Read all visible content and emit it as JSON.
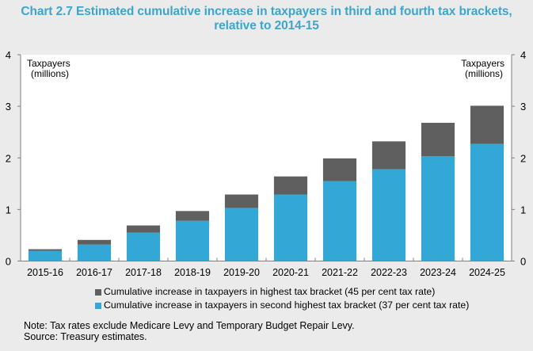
{
  "title_line1": "Chart 2.7 Estimated cumulative increase in taxpayers in third and fourth tax brackets,",
  "title_line2": "relative to 2014-15",
  "colors": {
    "background": "#ebebeb",
    "plot_background": "#ffffff",
    "title": "#3aa6cc",
    "highest_bracket": "#5f5f5f",
    "second_highest_bracket": "#33a8d6"
  },
  "chart_data": {
    "type": "bar",
    "stacked": true,
    "title": "Chart 2.7 Estimated cumulative increase in taxpayers in third and fourth tax brackets, relative to 2014-15",
    "xlabel": "",
    "ylabel": "Taxpayers (millions)",
    "ylabel_left": [
      "Taxpayers",
      "(millions)"
    ],
    "ylabel_right": [
      "Taxpayers",
      "(millions)"
    ],
    "ylim": [
      0,
      4
    ],
    "yticks": [
      0,
      1,
      2,
      3,
      4
    ],
    "grid": false,
    "legend_position": "bottom",
    "categories": [
      "2015-16",
      "2016-17",
      "2017-18",
      "2018-19",
      "2019-20",
      "2020-21",
      "2021-22",
      "2022-23",
      "2023-24",
      "2024-25"
    ],
    "series": [
      {
        "name": "Cumulative increase in taxpayers in second highest tax bracket (37 per cent tax rate)",
        "color": "#33a8d6",
        "values": [
          0.2,
          0.32,
          0.55,
          0.78,
          1.03,
          1.29,
          1.55,
          1.78,
          2.03,
          2.27
        ]
      },
      {
        "name": "Cumulative increase in taxpayers in highest tax bracket (45 per cent tax rate)",
        "color": "#5f5f5f",
        "values": [
          0.03,
          0.09,
          0.14,
          0.19,
          0.26,
          0.35,
          0.44,
          0.54,
          0.65,
          0.74
        ]
      }
    ],
    "totals": [
      0.23,
      0.41,
      0.69,
      0.97,
      1.29,
      1.64,
      1.99,
      2.32,
      2.68,
      3.01
    ]
  },
  "legend": [
    {
      "label": "Cumulative increase in taxpayers in highest tax bracket (45 per cent tax rate)",
      "color": "#5f5f5f"
    },
    {
      "label": "Cumulative increase in taxpayers in second highest tax bracket (37 per cent tax rate)",
      "color": "#33a8d6"
    }
  ],
  "notes": {
    "note": "Note: Tax rates exclude Medicare Levy and Temporary Budget Repair Levy.",
    "source": "Source: Treasury estimates."
  }
}
